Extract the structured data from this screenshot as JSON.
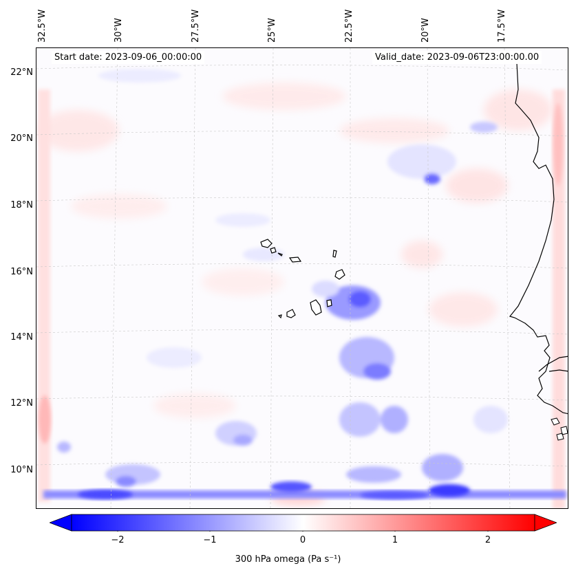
{
  "map": {
    "field": "300 hPa omega",
    "start_date": "Start date: 2023-09-06_00:00:00",
    "valid_date": "Valid_date: 2023-09-06T23:00:00.00",
    "lon_labels": [
      "32.5°W",
      "30°W",
      "27.5°W",
      "25°W",
      "22.5°W",
      "20°W",
      "17.5°W"
    ],
    "lat_labels": [
      "22°N",
      "20°N",
      "18°N",
      "16°N",
      "14°N",
      "12°N",
      "10°N"
    ],
    "coast_color": "#000000",
    "grid_color": "#c8c8c8"
  },
  "colorbar": {
    "ticks": [
      "−2",
      "−1",
      "0",
      "1",
      "2"
    ],
    "label": "300 hPa omega (Pa s⁻¹)",
    "min_color": "#0000ff",
    "mid_color": "#ffffff",
    "max_color": "#ff0000"
  }
}
